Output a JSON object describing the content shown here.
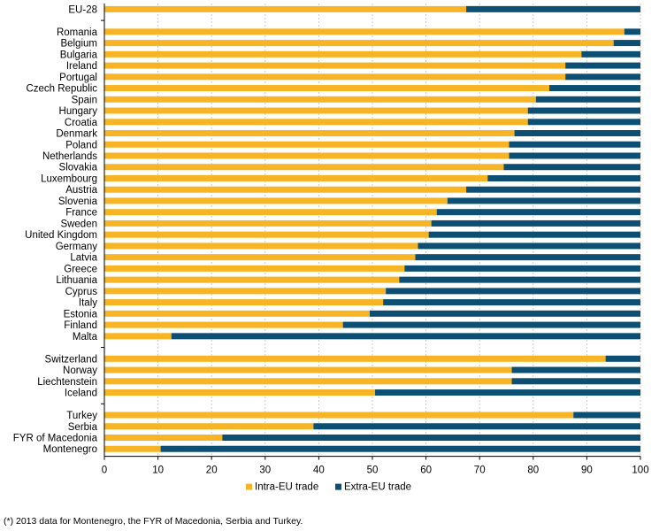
{
  "chart_data": {
    "type": "bar",
    "stacked": true,
    "orientation": "horizontal",
    "categories": [
      "EU-28",
      "",
      "Romania",
      "Belgium",
      "Bulgaria",
      "Ireland",
      "Portugal",
      "Czech Republic",
      "Spain",
      "Hungary",
      "Croatia",
      "Denmark",
      "Poland",
      "Netherlands",
      "Slovakia",
      "Luxembourg",
      "Austria",
      "Slovenia",
      "France",
      "Sweden",
      "United Kingdom",
      "Germany",
      "Latvia",
      "Greece",
      "Lithuania",
      "Cyprus",
      "Italy",
      "Estonia",
      "Finland",
      "Malta",
      "",
      "Switzerland",
      "Norway",
      "Liechtenstein",
      "Iceland",
      "",
      "Turkey",
      "Serbia",
      "FYR of Macedonia",
      "Montenegro"
    ],
    "series": [
      {
        "name": "Intra-EU trade",
        "color": "#F7B425",
        "values": [
          67.5,
          null,
          97,
          95,
          89,
          86,
          86,
          83,
          80.5,
          79,
          79,
          76.5,
          75.5,
          75.5,
          74.5,
          71.5,
          67.5,
          64,
          62,
          61,
          60.5,
          58.5,
          58,
          56,
          55,
          52.5,
          52,
          49.5,
          44.5,
          12.5,
          null,
          93.5,
          76,
          76,
          50.5,
          null,
          87.5,
          39,
          22,
          10.5
        ]
      },
      {
        "name": "Extra-EU trade",
        "color": "#0D4F73",
        "values": [
          32.5,
          null,
          3,
          5,
          11,
          14,
          14,
          17,
          19.5,
          21,
          21,
          23.5,
          24.5,
          24.5,
          25.5,
          28.5,
          32.5,
          36,
          38,
          39,
          39.5,
          41.5,
          42,
          44,
          45,
          47.5,
          48,
          50.5,
          55.5,
          87.5,
          null,
          6.5,
          24,
          24,
          49.5,
          null,
          12.5,
          61,
          78,
          89.5
        ]
      }
    ],
    "xlim": [
      0,
      100
    ],
    "xticks": [
      0,
      10,
      20,
      30,
      40,
      50,
      60,
      70,
      80,
      90,
      100
    ],
    "title": "",
    "xlabel": "",
    "ylabel": "",
    "grid": "vertical-dashed",
    "legend_position": "bottom-center"
  },
  "footnote": "(*) 2013 data for Montenegro, the FYR of Macedonia, Serbia and Turkey."
}
